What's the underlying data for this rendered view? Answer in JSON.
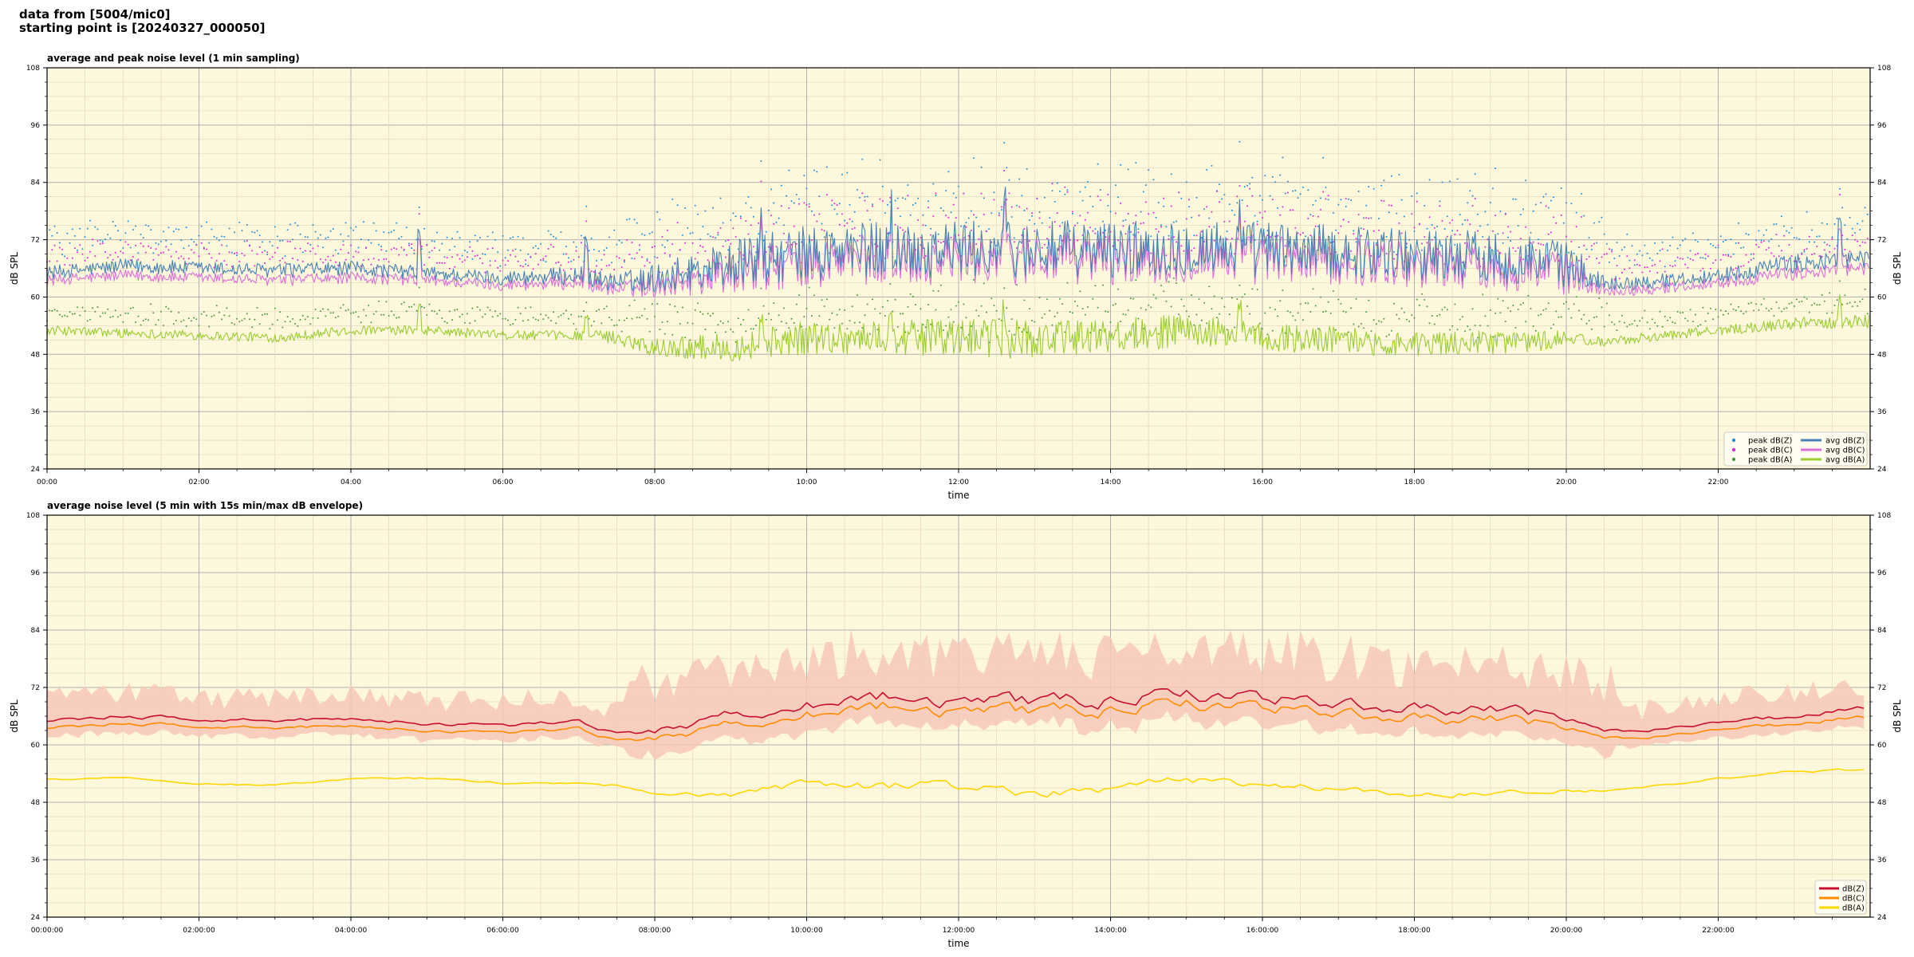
{
  "header": {
    "line1": "data from [5004/mic0]",
    "line2": "starting point is [20240327_000050]"
  },
  "theme": {
    "plot_bg": "#fdf7dc",
    "major_grid": "#b0b0b0",
    "minor_grid": "#e6dcc0",
    "peak_z": "#1f8fd6",
    "peak_c": "#e024d8",
    "peak_a": "#4e9a40",
    "avg_z": "#4682b4",
    "avg_c": "#da70d6",
    "avg_a": "#9acd32",
    "line_z": "#c8102e",
    "line_c": "#ff8c00",
    "line_a": "#ffd700",
    "envelope": "#f7c8b8"
  },
  "chart_data": [
    {
      "type": "scatter+line",
      "title": "average and peak noise level (1 min sampling)",
      "xlabel": "time",
      "ylabel": "dB SPL",
      "xlim": [
        0,
        24
      ],
      "ylim": [
        24,
        108
      ],
      "xticks": [
        "00:00",
        "02:00",
        "04:00",
        "06:00",
        "08:00",
        "10:00",
        "12:00",
        "14:00",
        "16:00",
        "18:00",
        "20:00",
        "22:00"
      ],
      "yticks": [
        24,
        36,
        48,
        60,
        72,
        84,
        96,
        108
      ],
      "grid": true,
      "legend_position": "lower-right",
      "legend": [
        "peak dB(Z)",
        "peak dB(C)",
        "peak dB(A)",
        "avg dB(Z)",
        "avg dB(C)",
        "avg dB(A)"
      ],
      "profile_hours": [
        0,
        1,
        2,
        3,
        4,
        5,
        6,
        7,
        7.5,
        8,
        9,
        10,
        11,
        12,
        13,
        14,
        15,
        16,
        17,
        18,
        19,
        20,
        20.5,
        21,
        22,
        23,
        24
      ],
      "series": [
        {
          "name": "avg dB(Z)",
          "style": "line",
          "center": [
            65,
            66.5,
            66,
            65.5,
            66,
            65,
            64,
            64.5,
            63,
            64,
            67,
            69,
            70,
            70,
            70,
            70,
            70.5,
            70,
            69.5,
            69,
            68.5,
            67,
            63,
            63,
            64.5,
            67,
            68
          ],
          "spread": [
            1.5,
            1.5,
            1.5,
            1.5,
            1.5,
            1.5,
            1.5,
            2,
            2,
            3,
            5,
            6,
            6,
            6,
            6,
            6,
            6,
            6,
            5.5,
            5.5,
            5.5,
            5,
            1.5,
            1.5,
            1.5,
            2,
            2
          ]
        },
        {
          "name": "avg dB(C)",
          "style": "line",
          "center": [
            63.5,
            64.5,
            64,
            63.5,
            64,
            63.5,
            62.5,
            63,
            61.5,
            62.5,
            65,
            67,
            68,
            68,
            68,
            68,
            68.5,
            68,
            67.5,
            67,
            66.5,
            65,
            61.5,
            61.5,
            63,
            65,
            66
          ],
          "spread": [
            1.2,
            1.2,
            1.2,
            1.2,
            1.2,
            1.2,
            1.2,
            1.5,
            1.5,
            2.5,
            4.5,
            5.5,
            5.5,
            5.5,
            5.5,
            5.5,
            5.5,
            5.5,
            5,
            5,
            5,
            4.5,
            1.2,
            1.2,
            1.2,
            1.5,
            1.5
          ]
        },
        {
          "name": "avg dB(A)",
          "style": "line",
          "center": [
            53,
            52.5,
            52,
            51.5,
            53,
            53,
            52,
            52,
            51.5,
            49.5,
            49.5,
            51.5,
            51.5,
            51.5,
            51,
            52,
            53,
            51.5,
            51,
            50,
            50.5,
            51,
            50.5,
            51.5,
            53,
            54.5,
            55
          ],
          "spread": [
            1,
            1,
            1,
            1,
            1,
            1,
            1,
            1,
            1.5,
            2,
            3,
            3.5,
            3.5,
            4,
            4,
            3.5,
            3.5,
            3,
            3,
            2.5,
            2.5,
            2,
            1,
            1,
            1,
            1.2,
            1.5
          ]
        },
        {
          "name": "peak dB(Z)",
          "style": "dots",
          "offset_db": 6
        },
        {
          "name": "peak dB(C)",
          "style": "dots",
          "offset_db": 4.5
        },
        {
          "name": "peak dB(A)",
          "style": "dots",
          "offset_db": 3.5
        }
      ],
      "annotations": {
        "spike_hours": [
          4.9,
          7.1,
          9.4,
          11.1,
          12.6,
          15.7,
          23.6
        ]
      }
    },
    {
      "type": "line+area",
      "title": "average noise level (5 min with 15s min/max dB envelope)",
      "xlabel": "time",
      "ylabel": "dB SPL",
      "xlim": [
        0,
        24
      ],
      "ylim": [
        24,
        108
      ],
      "xticks": [
        "00:00:00",
        "02:00:00",
        "04:00:00",
        "06:00:00",
        "08:00:00",
        "10:00:00",
        "12:00:00",
        "14:00:00",
        "16:00:00",
        "18:00:00",
        "20:00:00",
        "22:00:00"
      ],
      "yticks": [
        24,
        36,
        48,
        60,
        72,
        84,
        96,
        108
      ],
      "grid": true,
      "legend_position": "lower-right",
      "legend": [
        "dB(Z)",
        "dB(C)",
        "dB(A)"
      ],
      "profile_hours": [
        0,
        1,
        2,
        3,
        4,
        5,
        6,
        7,
        7.5,
        8,
        9,
        10,
        11,
        12,
        13,
        14,
        15,
        16,
        17,
        18,
        19,
        20,
        20.5,
        21,
        22,
        23,
        24
      ],
      "series": [
        {
          "name": "dB(Z)",
          "style": "line",
          "center": [
            65,
            66,
            65.5,
            65,
            65.5,
            64.5,
            64,
            65,
            62.5,
            63,
            66,
            69,
            70,
            69,
            69,
            69,
            70.5,
            70,
            69,
            67.5,
            67.5,
            66.5,
            63,
            63,
            64.5,
            66,
            68
          ],
          "spread": [
            0.8,
            0.8,
            0.8,
            0.8,
            0.8,
            0.8,
            0.8,
            1,
            1,
            1.5,
            2.5,
            3,
            3,
            3,
            3,
            3,
            3,
            3,
            2.5,
            2.5,
            2.5,
            2.5,
            0.8,
            0.8,
            0.8,
            1,
            1
          ]
        },
        {
          "name": "dB(C)",
          "style": "line",
          "center": [
            63.5,
            64.5,
            64,
            63.5,
            64,
            63,
            62.5,
            63.5,
            61,
            61.5,
            64,
            67,
            68,
            67,
            67,
            67,
            68.5,
            68,
            67,
            65.5,
            65.5,
            64.5,
            61.5,
            61.5,
            63,
            64.5,
            66
          ],
          "spread": [
            0.7,
            0.7,
            0.7,
            0.7,
            0.7,
            0.7,
            0.7,
            0.9,
            0.9,
            1.4,
            2.3,
            2.8,
            2.8,
            2.8,
            2.8,
            2.8,
            2.8,
            2.8,
            2.3,
            2.3,
            2.3,
            2.3,
            0.7,
            0.7,
            0.7,
            0.9,
            0.9
          ]
        },
        {
          "name": "dB(A)",
          "style": "line",
          "center": [
            53,
            53,
            52,
            51.5,
            53,
            53,
            52,
            52,
            51.5,
            49.5,
            49.5,
            51.5,
            51.5,
            51.5,
            50,
            51,
            53,
            51.5,
            51,
            49.5,
            50,
            50.5,
            50.5,
            51,
            53,
            54.5,
            55
          ],
          "spread": [
            0.4,
            0.4,
            0.4,
            0.4,
            0.4,
            0.4,
            0.4,
            0.4,
            0.6,
            0.8,
            1.5,
            2,
            2,
            2,
            2,
            1.8,
            1.8,
            1.5,
            1.5,
            1.2,
            1.2,
            1,
            0.4,
            0.4,
            0.4,
            0.6,
            0.8
          ]
        },
        {
          "name": "envelope",
          "style": "area",
          "min_offset_db": -4,
          "max_offset_db": 8
        }
      ]
    }
  ]
}
